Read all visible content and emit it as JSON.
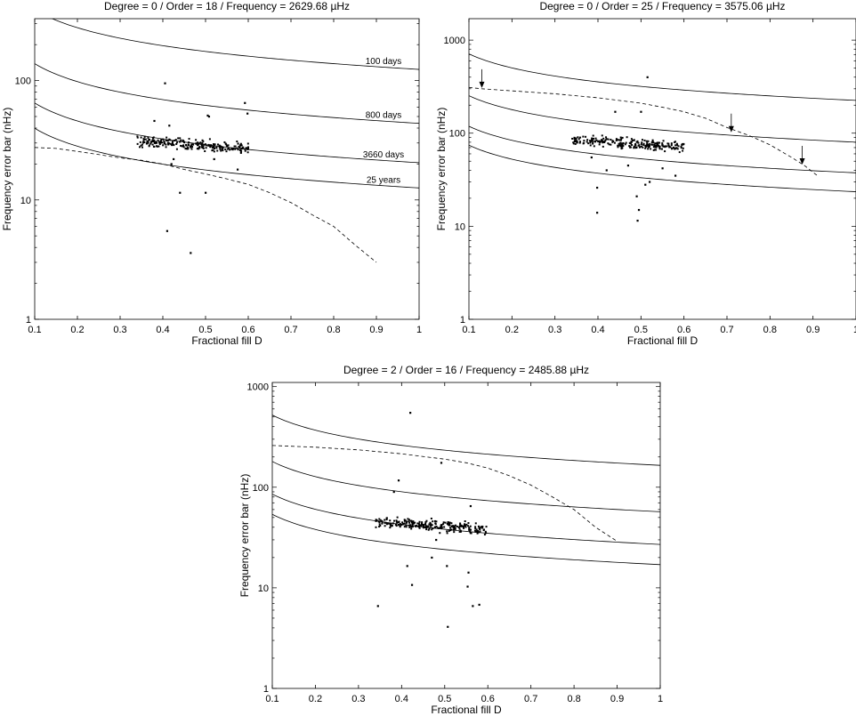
{
  "chart_data": [
    {
      "type": "scatter",
      "title": "Degree = 0 / Order = 18 / Frequency = 2629.68 µHz",
      "xlabel": "Fractional fill D",
      "ylabel": "Frequency error bar (nHz)",
      "xlim": [
        0.1,
        1.0
      ],
      "ylim": [
        1,
        330
      ],
      "yscale": "log",
      "grid": false,
      "xticks": [
        0.1,
        0.2,
        0.3,
        0.4,
        0.5,
        0.6,
        0.7,
        0.8,
        0.9,
        1.0
      ],
      "xtick_labels": [
        "0.1",
        "0.2",
        "0.3",
        "0.4",
        "0.5",
        "0.6",
        "0.7",
        "0.8",
        "0.9",
        "1"
      ],
      "yticks": [
        1,
        10,
        100
      ],
      "ytick_labels": [
        "1",
        "10",
        "100"
      ],
      "curves": [
        {
          "label": "100 days",
          "style": "solid",
          "coef": 124
        },
        {
          "label": "800 days",
          "style": "solid",
          "coef": 43.8
        },
        {
          "label": "3660 days",
          "style": "solid",
          "coef": 20.5
        },
        {
          "label": "25 years",
          "style": "solid",
          "coef": 12.6
        }
      ],
      "dashed_curve": {
        "style": "dashed",
        "x": [
          0.1,
          0.15,
          0.2,
          0.25,
          0.3,
          0.35,
          0.4,
          0.45,
          0.5,
          0.55,
          0.6,
          0.65,
          0.7,
          0.75,
          0.8,
          0.85,
          0.9
        ],
        "y": [
          27.5,
          27,
          25.5,
          24,
          22.5,
          21.5,
          20,
          18,
          16.5,
          15,
          13.5,
          11.5,
          9.5,
          7.5,
          6,
          4.2,
          3
        ]
      },
      "scatter_cluster": {
        "x_range": [
          0.34,
          0.6
        ],
        "y_center_start": 31,
        "y_center_end": 27,
        "spread_dex": 0.035,
        "count": 240
      },
      "scatter_outliers": {
        "x": [
          0.405,
          0.41,
          0.425,
          0.44,
          0.465,
          0.5,
          0.508,
          0.505,
          0.592,
          0.598,
          0.38,
          0.415,
          0.42,
          0.52,
          0.575
        ],
        "y": [
          95,
          5.5,
          22,
          11.5,
          3.6,
          11.5,
          50,
          51,
          65,
          53,
          46,
          42,
          20,
          22,
          18
        ]
      },
      "arrows": []
    },
    {
      "type": "scatter",
      "title": "Degree = 0 / Order = 25 / Frequency = 3575.06 µHz",
      "xlabel": "Fractional fill D",
      "ylabel": "Frequency error bar (nHz)",
      "xlim": [
        0.1,
        1.0
      ],
      "ylim": [
        1,
        1700
      ],
      "yscale": "log",
      "grid": false,
      "xticks": [
        0.1,
        0.2,
        0.3,
        0.4,
        0.5,
        0.6,
        0.7,
        0.8,
        0.9,
        1.0
      ],
      "xtick_labels": [
        "0.1",
        "0.2",
        "0.3",
        "0.4",
        "0.5",
        "0.6",
        "0.7",
        "0.8",
        "0.9",
        "1"
      ],
      "yticks": [
        1,
        10,
        100,
        1000
      ],
      "ytick_labels": [
        "1",
        "10",
        "100",
        "1000"
      ],
      "curves": [
        {
          "label": "",
          "style": "solid",
          "coef": 225
        },
        {
          "label": "",
          "style": "solid",
          "coef": 80
        },
        {
          "label": "",
          "style": "solid",
          "coef": 37.5
        },
        {
          "label": "",
          "style": "solid",
          "coef": 23.5
        }
      ],
      "dashed_curve": {
        "style": "dashed",
        "x": [
          0.1,
          0.13,
          0.2,
          0.3,
          0.4,
          0.5,
          0.55,
          0.6,
          0.65,
          0.7,
          0.75,
          0.8,
          0.85,
          0.88,
          0.91
        ],
        "y": [
          310,
          300,
          285,
          265,
          240,
          210,
          190,
          170,
          145,
          115,
          95,
          75,
          55,
          45,
          35
        ]
      },
      "scatter_cluster": {
        "x_range": [
          0.34,
          0.6
        ],
        "y_center_start": 85,
        "y_center_end": 70,
        "spread_dex": 0.04,
        "count": 240
      },
      "scatter_outliers": {
        "x": [
          0.515,
          0.44,
          0.398,
          0.398,
          0.49,
          0.495,
          0.492,
          0.51,
          0.52,
          0.58,
          0.42,
          0.47,
          0.55,
          0.385,
          0.5
        ],
        "y": [
          400,
          170,
          26,
          14,
          21,
          15,
          11.5,
          28,
          30,
          35,
          40,
          45,
          42,
          55,
          170
        ]
      },
      "arrows": [
        {
          "x": 0.13,
          "y": 300
        },
        {
          "x": 0.71,
          "y": 100
        },
        {
          "x": 0.875,
          "y": 45
        }
      ]
    },
    {
      "type": "scatter",
      "title": "Degree = 2 / Order = 16 / Frequency = 2485.88 µHz",
      "xlabel": "Fractional fill D",
      "ylabel": "Frequency error bar (nHz)",
      "xlim": [
        0.1,
        1.0
      ],
      "ylim": [
        1,
        1100
      ],
      "yscale": "log",
      "grid": false,
      "xticks": [
        0.1,
        0.2,
        0.3,
        0.4,
        0.5,
        0.6,
        0.7,
        0.8,
        0.9,
        1.0
      ],
      "xtick_labels": [
        "0.1",
        "0.2",
        "0.3",
        "0.4",
        "0.5",
        "0.6",
        "0.7",
        "0.8",
        "0.9",
        "1"
      ],
      "yticks": [
        1,
        10,
        100,
        1000
      ],
      "ytick_labels": [
        "1",
        "10",
        "100",
        "1000"
      ],
      "curves": [
        {
          "label": "",
          "style": "solid",
          "coef": 165
        },
        {
          "label": "",
          "style": "solid",
          "coef": 57
        },
        {
          "label": "",
          "style": "solid",
          "coef": 27
        },
        {
          "label": "",
          "style": "solid",
          "coef": 17
        }
      ],
      "dashed_curve": {
        "style": "dashed",
        "x": [
          0.1,
          0.2,
          0.3,
          0.4,
          0.5,
          0.55,
          0.6,
          0.65,
          0.7,
          0.75,
          0.8,
          0.85,
          0.9
        ],
        "y": [
          260,
          250,
          235,
          215,
          190,
          175,
          155,
          130,
          105,
          80,
          60,
          40,
          29
        ]
      },
      "scatter_cluster": {
        "x_range": [
          0.34,
          0.6
        ],
        "y_center_start": 45,
        "y_center_end": 38,
        "spread_dex": 0.04,
        "count": 240
      },
      "scatter_outliers": {
        "x": [
          0.42,
          0.492,
          0.393,
          0.382,
          0.345,
          0.413,
          0.424,
          0.507,
          0.555,
          0.553,
          0.565,
          0.58,
          0.505,
          0.56,
          0.48,
          0.47
        ],
        "y": [
          550,
          175,
          117,
          90,
          6.6,
          16.5,
          10.7,
          4.1,
          14.2,
          10.3,
          6.6,
          6.8,
          16.5,
          65,
          30,
          20
        ]
      },
      "arrows": []
    }
  ]
}
